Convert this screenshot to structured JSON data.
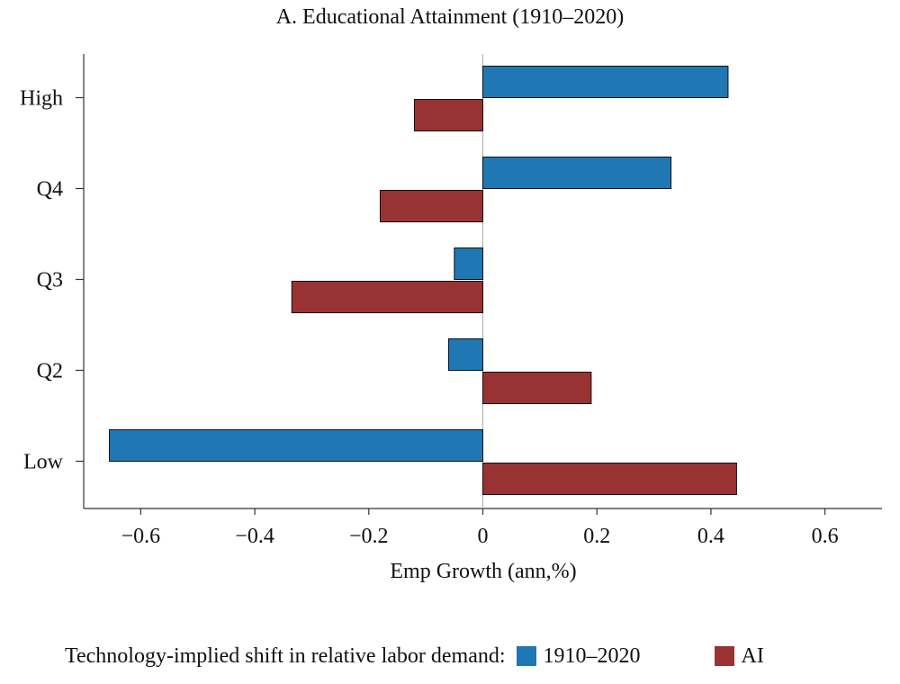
{
  "chart_data": {
    "type": "bar",
    "orientation": "horizontal",
    "title": "A. Educational Attainment (1910–2020)",
    "xlabel": "Emp Growth (ann,%)",
    "ylabel": "",
    "categories": [
      "High",
      "Q4",
      "Q3",
      "Q2",
      "Low"
    ],
    "series": [
      {
        "name": "1910–2020",
        "color": "#1f77b4",
        "values": [
          0.43,
          0.33,
          -0.05,
          -0.06,
          -0.655
        ]
      },
      {
        "name": "AI",
        "color": "#993333",
        "values": [
          -0.12,
          -0.18,
          -0.335,
          0.19,
          0.445
        ]
      }
    ],
    "xlim": [
      -0.7,
      0.7
    ],
    "xticks": [
      -0.6,
      -0.4,
      -0.2,
      0,
      0.2,
      0.4,
      0.6
    ],
    "xtick_labels": [
      "−0.6",
      "−0.4",
      "−0.2",
      "0",
      "0.2",
      "0.4",
      "0.6"
    ],
    "grid": false,
    "legend": {
      "title": "Technology-implied shift in relative labor demand:",
      "position": "bottom"
    }
  }
}
